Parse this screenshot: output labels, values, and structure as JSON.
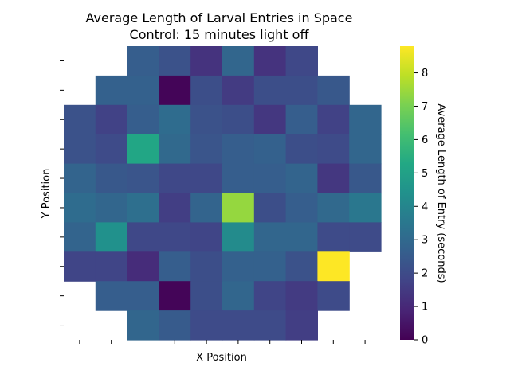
{
  "chart_data": {
    "type": "heatmap",
    "title": "Average Length of Larval Entries in Space",
    "subtitle": "Control: 15 minutes light off",
    "xlabel": "X Position",
    "ylabel": "Y Position",
    "x_tick_labels": [
      "",
      "",
      "",
      "",
      "",
      "",
      "",
      "",
      "",
      ""
    ],
    "y_tick_labels": [
      "",
      "",
      "",
      "",
      "",
      "",
      "",
      "",
      "",
      ""
    ],
    "colorbar": {
      "label": "Average Length of Entry (seconds)",
      "range": [
        0,
        8.8
      ],
      "ticks": [
        "0",
        "1",
        "2",
        "3",
        "4",
        "5",
        "6",
        "7",
        "8"
      ],
      "colormap": "viridis"
    },
    "rows": 10,
    "cols": 10,
    "values": [
      [
        null,
        null,
        2.6,
        2.2,
        1.3,
        2.9,
        1.3,
        1.9,
        null,
        null
      ],
      [
        null,
        2.7,
        2.7,
        0.1,
        2.1,
        1.5,
        2.1,
        2.1,
        2.4,
        null
      ],
      [
        2.2,
        1.7,
        2.6,
        3.1,
        2.2,
        2.1,
        1.4,
        2.6,
        1.7,
        2.9
      ],
      [
        2.2,
        2.0,
        5.2,
        3.0,
        2.3,
        2.6,
        2.7,
        2.1,
        2.0,
        2.9
      ],
      [
        2.8,
        2.4,
        2.3,
        1.9,
        1.9,
        2.6,
        2.6,
        2.8,
        1.4,
        2.4
      ],
      [
        3.1,
        2.9,
        3.2,
        1.6,
        2.8,
        7.4,
        2.1,
        2.6,
        3.0,
        3.5
      ],
      [
        2.8,
        4.4,
        1.9,
        1.9,
        1.8,
        4.2,
        2.9,
        2.9,
        2.0,
        2.0
      ],
      [
        1.8,
        1.8,
        1.1,
        2.6,
        2.1,
        2.7,
        2.7,
        2.2,
        8.8,
        null
      ],
      [
        null,
        2.6,
        2.6,
        0.1,
        2.1,
        2.9,
        1.8,
        1.5,
        2.0,
        null
      ],
      [
        null,
        null,
        2.9,
        2.5,
        2.0,
        2.0,
        2.0,
        1.6,
        null,
        null
      ]
    ]
  }
}
